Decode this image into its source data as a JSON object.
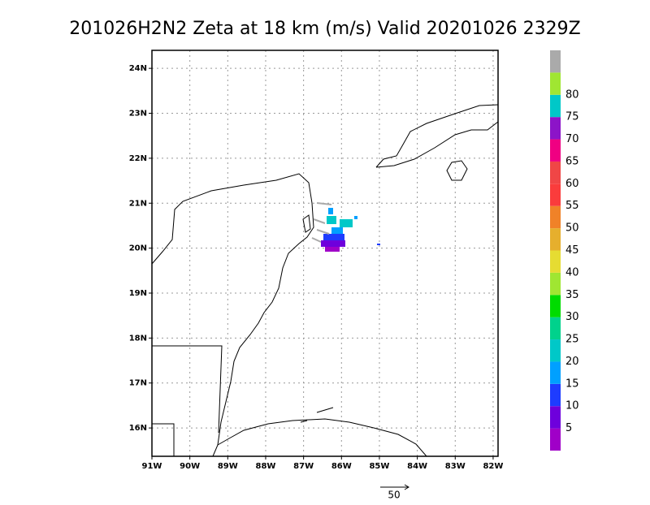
{
  "chart_data": {
    "type": "map",
    "title": "201026H2N2 Zeta at 18 km (m/s) Valid 20201026 2329Z",
    "xlim": [
      -91,
      -81.87
    ],
    "ylim": [
      15.37,
      24.4
    ],
    "xticks": [
      {
        "value": -91,
        "label": "91W"
      },
      {
        "value": -90,
        "label": "90W"
      },
      {
        "value": -89,
        "label": "89W"
      },
      {
        "value": -88,
        "label": "88W"
      },
      {
        "value": -87,
        "label": "87W"
      },
      {
        "value": -86,
        "label": "86W"
      },
      {
        "value": -85,
        "label": "85W"
      },
      {
        "value": -84,
        "label": "84W"
      },
      {
        "value": -83,
        "label": "83W"
      },
      {
        "value": -82,
        "label": "82W"
      }
    ],
    "yticks": [
      {
        "value": 16,
        "label": "16N"
      },
      {
        "value": 17,
        "label": "17N"
      },
      {
        "value": 18,
        "label": "18N"
      },
      {
        "value": 19,
        "label": "19N"
      },
      {
        "value": 20,
        "label": "20N"
      },
      {
        "value": 21,
        "label": "21N"
      },
      {
        "value": 22,
        "label": "22N"
      },
      {
        "value": 23,
        "label": "23N"
      },
      {
        "value": 24,
        "label": "24N"
      }
    ],
    "grid": true,
    "colorbar": {
      "levels": [
        5,
        10,
        15,
        20,
        25,
        30,
        35,
        40,
        45,
        50,
        55,
        60,
        65,
        70,
        75,
        80
      ],
      "colors": [
        "#a000c8",
        "#6e00dc",
        "#1e3cff",
        "#00a0ff",
        "#00c8c8",
        "#00d28c",
        "#00dc00",
        "#a0e632",
        "#e6dc32",
        "#e6af2d",
        "#f08228",
        "#fa3c3c",
        "#f04646",
        "#f00082",
        "#8c14c8",
        "#00c8c8",
        "#a0e632",
        "#aaaaaa"
      ]
    },
    "vector_scale": 50
  }
}
